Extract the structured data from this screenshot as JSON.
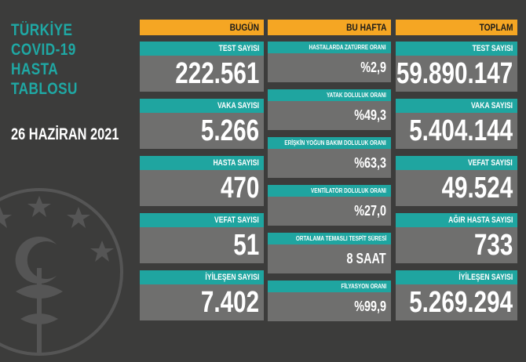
{
  "title_lines": [
    "TÜRKİYE",
    "COVID-19",
    "HASTA",
    "TABLOSU"
  ],
  "date": "26 HAZİRAN 2021",
  "columns": {
    "today": {
      "header": "BUGÜN",
      "items": [
        {
          "label": "TEST SAYISI",
          "value": "222.561"
        },
        {
          "label": "VAKA SAYISI",
          "value": "5.266"
        },
        {
          "label": "HASTA SAYISI",
          "value": "470"
        },
        {
          "label": "VEFAT SAYISI",
          "value": "51"
        },
        {
          "label": "İYİLEŞEN SAYISI",
          "value": "7.402"
        }
      ]
    },
    "week": {
      "header": "BU HAFTA",
      "items": [
        {
          "label": "HASTALARDA ZATÜRRE ORANI",
          "value": "%2,9"
        },
        {
          "label": "YATAK DOLULUK ORANI",
          "value": "%49,3"
        },
        {
          "label": "ERİŞKİN YOĞUN BAKIM DOLULUK ORANI",
          "value": "%63,3"
        },
        {
          "label": "VENTİLATÖR DOLULUK ORANI",
          "value": "%27,0"
        },
        {
          "label": "ORTALAMA TEMASLI TESPİT SÜRESİ",
          "value": "8 SAAT"
        },
        {
          "label": "FİLYASYON ORANI",
          "value": "%99,9"
        }
      ]
    },
    "total": {
      "header": "TOPLAM",
      "items": [
        {
          "label": "TEST SAYISI",
          "value": "59.890.147"
        },
        {
          "label": "VAKA SAYISI",
          "value": "5.404.144"
        },
        {
          "label": "VEFAT SAYISI",
          "value": "49.524"
        },
        {
          "label": "AĞIR HASTA SAYISI",
          "value": "733"
        },
        {
          "label": "İYİLEŞEN SAYISI",
          "value": "5.269.294"
        }
      ]
    }
  },
  "colors": {
    "background": "#3c3c3b",
    "header": "#f5a623",
    "label_bar": "#1fa5a0",
    "value_box": "#6f6f6e",
    "title": "#1fa8a4"
  }
}
